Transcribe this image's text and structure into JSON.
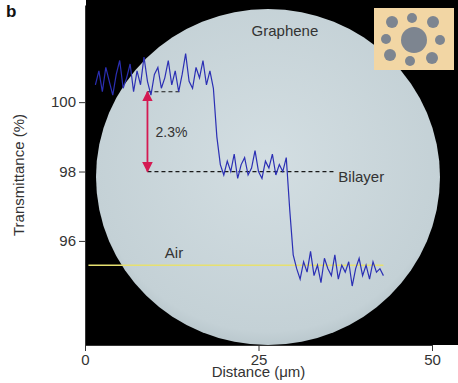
{
  "chart_data": {
    "type": "line",
    "title": "b",
    "x_label": "Distance (μm)",
    "y_label": "Transmittance (%)",
    "xlim": [
      0,
      50
    ],
    "xticks": [
      0,
      25,
      50
    ],
    "ylim": [
      93,
      102.8
    ],
    "yticks": [
      96,
      98,
      100
    ],
    "color": "#2b2fb4",
    "x": [
      1.5,
      2,
      2.5,
      3,
      3.5,
      4,
      4.5,
      5,
      5.5,
      6,
      6.5,
      7,
      7.5,
      8,
      8.5,
      9,
      9.5,
      10,
      10.5,
      11,
      11.5,
      12,
      12.5,
      13,
      13.5,
      14,
      14.5,
      15,
      15.5,
      16,
      16.5,
      17,
      17.5,
      18,
      18.5,
      19,
      19.5,
      20,
      20.5,
      21,
      21.5,
      22,
      22.5,
      23,
      23.5,
      24,
      24.5,
      25,
      25.5,
      26,
      26.5,
      27,
      27.5,
      28,
      28.5,
      29,
      29.5,
      30,
      30.5,
      31,
      31.5,
      32,
      32.5,
      33,
      33.5,
      34,
      34.5,
      35,
      35.5,
      36,
      36.5,
      37,
      37.5,
      38,
      38.5,
      39,
      39.5,
      40,
      40.5,
      41,
      41.5,
      42,
      42.5,
      43
    ],
    "values": [
      100.5,
      100.9,
      100.3,
      101.0,
      100.6,
      100.2,
      100.8,
      101.2,
      100.4,
      100.7,
      101.1,
      100.3,
      100.9,
      100.5,
      101.3,
      100.6,
      100.2,
      100.8,
      101.0,
      100.4,
      100.7,
      101.2,
      100.5,
      100.9,
      100.3,
      100.8,
      101.4,
      100.6,
      100.4,
      101.0,
      100.7,
      101.2,
      100.5,
      100.9,
      100.4,
      99.0,
      98.2,
      97.9,
      98.3,
      98.0,
      98.5,
      97.8,
      98.2,
      98.4,
      97.9,
      98.1,
      98.6,
      98.0,
      97.8,
      98.3,
      98.1,
      98.5,
      97.9,
      98.2,
      98.0,
      98.4,
      96.9,
      95.6,
      95.2,
      94.9,
      95.4,
      95.1,
      95.7,
      95.0,
      95.3,
      94.8,
      95.5,
      95.2,
      95.0,
      95.6,
      94.9,
      95.3,
      95.1,
      95.4,
      94.7,
      95.2,
      95.5,
      95.0,
      95.3,
      94.9,
      95.4,
      95.1,
      95.2,
      95.0
    ],
    "reference_lines": [
      {
        "y": 100.3,
        "x": [
          9,
          14
        ],
        "color": "#1a1a1a",
        "line_style": "dashed"
      },
      {
        "y": 98.0,
        "x": [
          9,
          36
        ],
        "color": "#1a1a1a",
        "line_style": "dashed"
      },
      {
        "y": 95.3,
        "x": [
          0.5,
          43
        ],
        "color": "#e6e070",
        "line_style": "solid"
      }
    ],
    "arrow": {
      "x": 9,
      "y_from": 98.0,
      "y_to": 100.3,
      "label": "2.3%",
      "color": "#d41a52"
    },
    "annotations": [
      {
        "text": "Graphene",
        "x": 24,
        "y": 101.9
      },
      {
        "text": "Bilayer",
        "x": 36.5,
        "y": 97.7
      },
      {
        "text": "Air",
        "x": 11.5,
        "y": 95.5
      }
    ]
  }
}
